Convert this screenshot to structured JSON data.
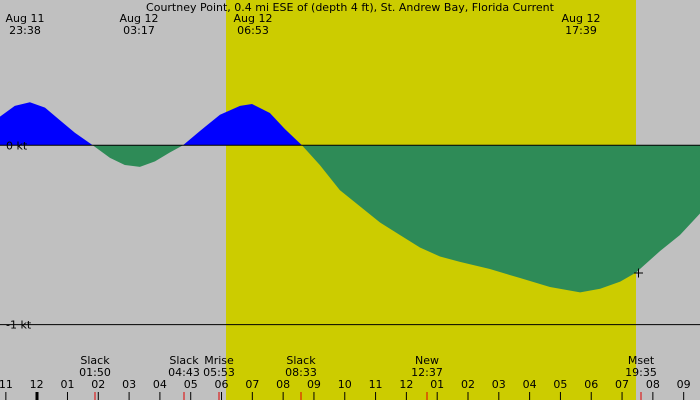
{
  "chart_data": {
    "type": "area",
    "title": "Courtney Point, 0.4 mi ESE of (depth 4 ft), St. Andrew Bay, Florida Current",
    "x": [
      -0.19,
      0.29,
      0.78,
      1.27,
      1.75,
      2.24,
      2.82,
      3.38,
      3.86,
      4.35,
      4.84,
      5.32,
      5.75,
      6.3,
      6.95,
      7.6,
      7.99,
      8.57,
      9.06,
      9.61,
      10.19,
      10.84,
      11.49,
      12.14,
      12.79,
      13.44,
      14.09,
      14.74,
      15.71,
      16.69,
      17.66,
      18.64,
      19.29,
      19.94,
      20.45,
      21.23,
      21.88,
      22.53
    ],
    "values": [
      0.16,
      0.22,
      0.24,
      0.21,
      0.14,
      0.07,
      0,
      -0.07,
      -0.11,
      -0.12,
      -0.09,
      -0.04,
      0,
      0.08,
      0.17,
      0.22,
      0.23,
      0.18,
      0.09,
      0,
      -0.11,
      -0.25,
      -0.34,
      -0.43,
      -0.5,
      -0.57,
      -0.62,
      -0.65,
      -0.69,
      -0.74,
      -0.79,
      -0.82,
      -0.8,
      -0.76,
      -0.71,
      -0.59,
      -0.5,
      -0.38
    ],
    "positive_color": "#0000ff",
    "negative_color": "#2e8b57",
    "xlim": [
      -0.19,
      22.53
    ],
    "ylim": [
      -1.42,
      0.81
    ],
    "yticks": [
      {
        "value": 0,
        "label": "0 kt"
      },
      {
        "value": -1,
        "label": "-1 kt"
      }
    ],
    "xticks": [
      {
        "value": 0,
        "label": "11"
      },
      {
        "value": 1,
        "label": "12"
      },
      {
        "value": 2,
        "label": "01"
      },
      {
        "value": 3,
        "label": "02"
      },
      {
        "value": 4,
        "label": "03"
      },
      {
        "value": 5,
        "label": "04"
      },
      {
        "value": 6,
        "label": "05"
      },
      {
        "value": 7,
        "label": "06"
      },
      {
        "value": 8,
        "label": "07"
      },
      {
        "value": 9,
        "label": "08"
      },
      {
        "value": 10,
        "label": "09"
      },
      {
        "value": 11,
        "label": "10"
      },
      {
        "value": 12,
        "label": "11"
      },
      {
        "value": 13,
        "label": "12"
      },
      {
        "value": 14,
        "label": "01"
      },
      {
        "value": 15,
        "label": "02"
      },
      {
        "value": 16,
        "label": "03"
      },
      {
        "value": 17,
        "label": "04"
      },
      {
        "value": 18,
        "label": "05"
      },
      {
        "value": 19,
        "label": "06"
      },
      {
        "value": 20,
        "label": "07"
      },
      {
        "value": 21,
        "label": "08"
      },
      {
        "value": 22,
        "label": "09"
      }
    ],
    "top_labels": [
      {
        "date": "Aug 11",
        "time": "23:38"
      },
      {
        "date": "Aug 12",
        "time": "03:17"
      },
      {
        "date": "Aug 12",
        "time": "06:53"
      },
      {
        "date": "Aug 12",
        "time": "17:39"
      }
    ],
    "events": [
      {
        "label": "Slack",
        "time": "01:50"
      },
      {
        "label": "Slack",
        "time": "04:43"
      },
      {
        "label": "Mrise",
        "time": "05:53"
      },
      {
        "label": "Slack",
        "time": "08:33"
      },
      {
        "label": "New",
        "time": "12:37"
      },
      {
        "label": "Mset",
        "time": "19:35"
      }
    ]
  }
}
